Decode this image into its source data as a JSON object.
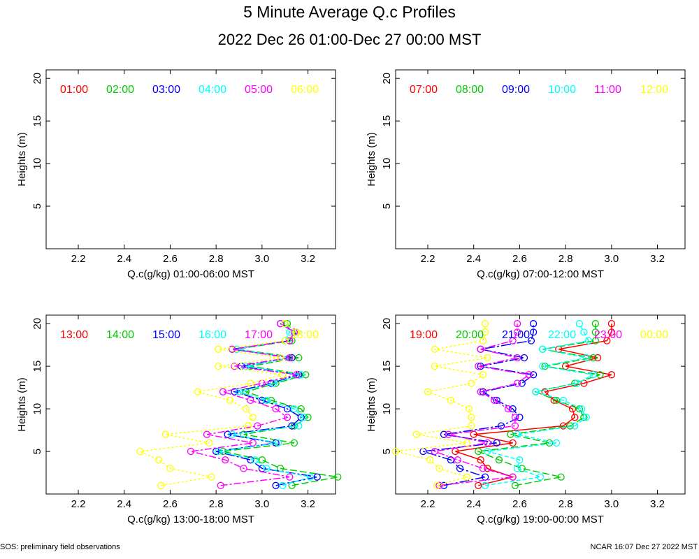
{
  "header": {
    "title": "5 Minute Average Q.c Profiles",
    "subtitle": "2022 Dec 26 01:00-Dec 27 00:00 MST"
  },
  "footer": {
    "left": "SOS: preliminary field observations",
    "right": "NCAR 16:07 Dec 27 2022 MST"
  },
  "colors": [
    "#ff0000",
    "#00cc00",
    "#0000ff",
    "#00ffff",
    "#ff00ff",
    "#ffff00"
  ],
  "chart_data": [
    {
      "type": "line",
      "xlabel": "Q.c(g/kg) 01:00-06:00 MST",
      "ylabel": "Heights (m)",
      "xlim": [
        2.06,
        3.32
      ],
      "ylim": [
        0,
        21
      ],
      "xticks": [
        "2.2",
        "2.4",
        "2.6",
        "2.8",
        "3.0",
        "3.2"
      ],
      "yticks": [
        "5",
        "10",
        "15",
        "20"
      ],
      "legend": [
        "01:00",
        "02:00",
        "03:00",
        "04:00",
        "05:00",
        "06:00"
      ],
      "series": []
    },
    {
      "type": "line",
      "xlabel": "Q.c(g/kg) 07:00-12:00 MST",
      "ylabel": "Heights (m)",
      "xlim": [
        2.06,
        3.32
      ],
      "ylim": [
        0,
        21
      ],
      "xticks": [
        "2.2",
        "2.4",
        "2.6",
        "2.8",
        "3.0",
        "3.2"
      ],
      "yticks": [
        "5",
        "10",
        "15",
        "20"
      ],
      "legend": [
        "07:00",
        "08:00",
        "09:00",
        "10:00",
        "11:00",
        "12:00"
      ],
      "series": []
    },
    {
      "type": "line",
      "xlabel": "Q.c(g/kg) 13:00-18:00 MST",
      "ylabel": "Heights (m)",
      "xlim": [
        2.06,
        3.32
      ],
      "ylim": [
        0,
        21
      ],
      "xticks": [
        "2.2",
        "2.4",
        "2.6",
        "2.8",
        "3.0",
        "3.2"
      ],
      "yticks": [
        "5",
        "10",
        "15",
        "20"
      ],
      "legend": [
        "13:00",
        "14:00",
        "15:00",
        "16:00",
        "17:00",
        "18:00"
      ],
      "heights": [
        1,
        2,
        3,
        4,
        5,
        6,
        7,
        8,
        9,
        10,
        11,
        12,
        13,
        14,
        15,
        16,
        17,
        18,
        19,
        20
      ],
      "series": [
        {
          "name": "13:00",
          "color": "#ff0000",
          "values": []
        },
        {
          "name": "14:00",
          "color": "#00cc00",
          "values": [
            3.13,
            3.33,
            3.08,
            3.0,
            2.83,
            3.14,
            2.92,
            3.14,
            3.2,
            3.17,
            3.04,
            2.93,
            3.06,
            3.19,
            2.95,
            3.16,
            2.89,
            3.13,
            3.14,
            3.11
          ]
        },
        {
          "name": "15:00",
          "color": "#0000ff",
          "values": [
            3.06,
            3.24,
            3.0,
            2.95,
            2.8,
            3.06,
            2.85,
            3.13,
            3.17,
            3.11,
            3.0,
            2.88,
            3.04,
            3.16,
            2.91,
            3.13,
            2.87,
            3.12,
            3.15,
            3.08
          ]
        },
        {
          "name": "16:00",
          "color": "#00ffff",
          "values": [
            3.09,
            3.21,
            3.02,
            2.97,
            2.81,
            3.07,
            2.87,
            3.16,
            3.18,
            3.14,
            3.02,
            2.9,
            3.05,
            3.17,
            2.93,
            3.12,
            2.89,
            3.1,
            3.12,
            3.1
          ]
        },
        {
          "name": "17:00",
          "color": "#ff00ff",
          "values": [
            2.82,
            3.12,
            2.92,
            2.84,
            2.69,
            2.96,
            2.76,
            2.98,
            3.11,
            3.06,
            2.95,
            2.83,
            3.0,
            3.15,
            2.88,
            3.12,
            2.87,
            3.12,
            3.14,
            3.08
          ]
        },
        {
          "name": "18:00",
          "color": "#ffff00",
          "values": [
            2.56,
            2.78,
            2.6,
            2.55,
            2.47,
            2.77,
            2.58,
            2.94,
            2.96,
            2.93,
            2.86,
            2.72,
            2.95,
            3.09,
            2.81,
            3.08,
            2.81,
            3.1,
            3.15,
            3.1
          ]
        }
      ]
    },
    {
      "type": "line",
      "xlabel": "Q.c(g/kg) 19:00-00:00 MST",
      "ylabel": "Heights (m)",
      "xlim": [
        2.06,
        3.32
      ],
      "ylim": [
        0,
        21
      ],
      "xticks": [
        "2.2",
        "2.4",
        "2.6",
        "2.8",
        "3.0",
        "3.2"
      ],
      "yticks": [
        "5",
        "10",
        "15",
        "20"
      ],
      "legend": [
        "19:00",
        "20:00",
        "21:00",
        "22:00",
        "23:00",
        "00:00"
      ],
      "heights": [
        1,
        2,
        3,
        4,
        5,
        6,
        7,
        8,
        9,
        10,
        11,
        12,
        13,
        14,
        15,
        16,
        17,
        18,
        19,
        20
      ],
      "series": [
        {
          "name": "19:00",
          "color": "#ff0000",
          "values": [
            2.42,
            2.57,
            2.46,
            2.43,
            2.32,
            2.57,
            2.4,
            2.79,
            2.84,
            2.83,
            2.75,
            2.71,
            2.88,
            3.0,
            2.8,
            2.94,
            2.77,
            2.98,
            3.0,
            3.0
          ]
        },
        {
          "name": "20:00",
          "color": "#00cc00",
          "values": [
            2.58,
            2.78,
            2.61,
            2.51,
            2.42,
            2.73,
            2.56,
            2.82,
            2.88,
            2.86,
            2.76,
            2.67,
            2.84,
            2.95,
            2.71,
            2.92,
            2.7,
            2.93,
            2.93,
            2.93
          ]
        },
        {
          "name": "21:00",
          "color": "#0000ff",
          "values": [
            2.27,
            2.45,
            2.34,
            2.3,
            2.18,
            2.5,
            2.27,
            2.52,
            2.6,
            2.57,
            2.5,
            2.44,
            2.61,
            2.66,
            2.43,
            2.62,
            2.43,
            2.65,
            2.66,
            2.66
          ]
        },
        {
          "name": "22:00",
          "color": "#00ffff",
          "values": [
            2.45,
            2.69,
            2.59,
            2.6,
            2.46,
            2.76,
            2.59,
            2.84,
            2.89,
            2.87,
            2.79,
            2.67,
            2.85,
            2.92,
            2.7,
            2.89,
            2.7,
            2.9,
            2.88,
            2.86
          ]
        },
        {
          "name": "23:00",
          "color": "#ff00ff",
          "values": [
            2.25,
            2.57,
            2.44,
            2.33,
            2.23,
            2.46,
            2.29,
            2.58,
            2.58,
            2.55,
            2.49,
            2.43,
            2.59,
            2.64,
            2.42,
            2.59,
            2.43,
            2.57,
            2.59,
            2.59
          ]
        },
        {
          "name": "00:00",
          "color": "#ffff00",
          "values": [
            2.24,
            2.37,
            2.25,
            2.21,
            2.06,
            2.37,
            2.15,
            2.39,
            2.39,
            2.38,
            2.3,
            2.2,
            2.39,
            2.44,
            2.23,
            2.46,
            2.23,
            2.44,
            2.45,
            2.45
          ]
        }
      ]
    }
  ]
}
